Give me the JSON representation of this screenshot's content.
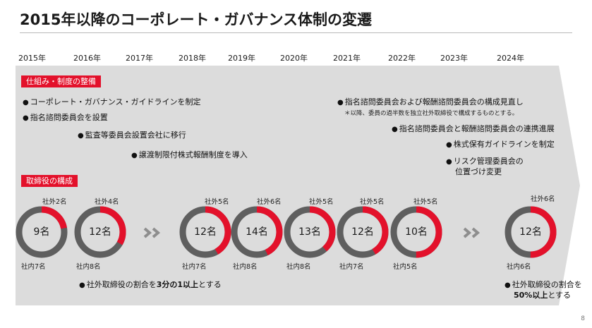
{
  "title": "2015年以降のコーポレート・ガバナンス体制の変遷",
  "years": [
    "2015年",
    "2016年",
    "2017年",
    "2018年",
    "2019年",
    "2020年",
    "2021年",
    "2022年",
    "2023年",
    "2024年"
  ],
  "sections": {
    "framework_label": "仕組み・制度の整備",
    "board_label": "取締役の構成"
  },
  "events": [
    "コーポレート・ガバナンス・ガイドラインを制定",
    "指名諮問委員会を設置",
    "監査等委員会設置会社に移行",
    "譲渡制限付株式報酬制度を導入",
    "指名諮問委員会および報酬諮問委員会の構成見直し",
    "指名諮問委員会と報酬諮問委員会の連携進展",
    "株式保有ガイドラインを制定",
    "リスク管理委員会の",
    "位置づけ変更"
  ],
  "note": "＊以降、委員の過半数を独立社外取締役で構成するものとする。",
  "bullet_mark": "●",
  "board": [
    {
      "year": "2015年",
      "total": "9名",
      "outside": "社外2名",
      "inside": "社内7名",
      "outside_n": 2,
      "total_n": 9
    },
    {
      "year": "2016年",
      "total": "12名",
      "outside": "社外4名",
      "inside": "社内8名",
      "outside_n": 4,
      "total_n": 12
    },
    {
      "year": "2018年",
      "total": "12名",
      "outside": "社外5名",
      "inside": "社内7名",
      "outside_n": 5,
      "total_n": 12
    },
    {
      "year": "2019年",
      "total": "14名",
      "outside": "社外6名",
      "inside": "社内8名",
      "outside_n": 6,
      "total_n": 14
    },
    {
      "year": "2020年",
      "total": "13名",
      "outside": "社外5名",
      "inside": "社内8名",
      "outside_n": 5,
      "total_n": 13
    },
    {
      "year": "2021年",
      "total": "12名",
      "outside": "社外5名",
      "inside": "社内7名",
      "outside_n": 5,
      "total_n": 12
    },
    {
      "year": "2022年",
      "total": "10名",
      "outside": "社外5名",
      "inside": "社内5名",
      "outside_n": 5,
      "total_n": 10
    },
    {
      "year": "2024年",
      "total": "12名",
      "outside": "社外6名",
      "inside": "社内6名",
      "outside_n": 6,
      "total_n": 12
    }
  ],
  "policy_2016": {
    "pre": "社外取締役の割合を",
    "bold": "3分の1以上",
    "post": "とする"
  },
  "policy_2024": {
    "line1": "社外取締役の割合を",
    "bold": "50%以上",
    "post": "とする"
  },
  "page_number": "8",
  "colors": {
    "accent": "#e3112b",
    "ring_gray": "#5f5f5f",
    "band": "#dcdcdc",
    "chevron": "#8e8e8e"
  }
}
